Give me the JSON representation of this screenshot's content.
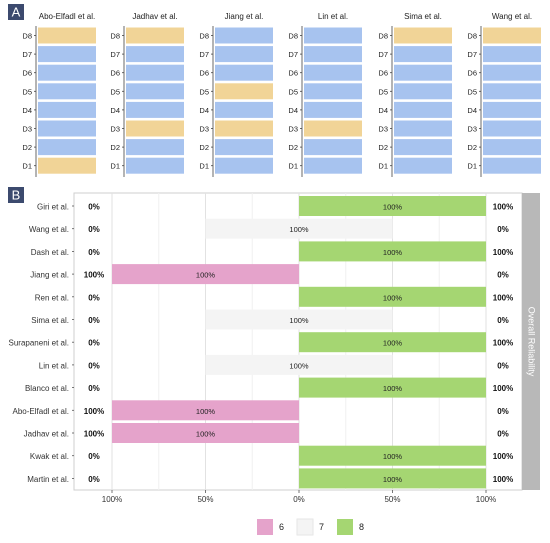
{
  "panel_a_label": "A",
  "panel_b_label": "B",
  "colors": {
    "blue": "#a7c3ef",
    "orange": "#f1d497",
    "pink": "#e5a3cb",
    "grey": "#f4f4f4",
    "green": "#a5d672",
    "panel_badge": "#3c4a6e",
    "strip": "#b8b8b8"
  },
  "chart_data": [
    {
      "type": "heatmap",
      "rows": [
        "D8",
        "D7",
        "D6",
        "D5",
        "D4",
        "D3",
        "D2",
        "D1"
      ],
      "studies": [
        {
          "name": "Abo-Elfadl et al.",
          "cells": [
            "orange",
            "blue",
            "blue",
            "blue",
            "blue",
            "blue",
            "blue",
            "orange"
          ]
        },
        {
          "name": "Jadhav et al.",
          "cells": [
            "orange",
            "blue",
            "blue",
            "blue",
            "blue",
            "orange",
            "blue",
            "blue"
          ]
        },
        {
          "name": "Jiang et al.",
          "cells": [
            "blue",
            "blue",
            "blue",
            "orange",
            "blue",
            "orange",
            "blue",
            "blue"
          ]
        },
        {
          "name": "Lin et al.",
          "cells": [
            "blue",
            "blue",
            "blue",
            "blue",
            "blue",
            "orange",
            "blue",
            "blue"
          ]
        },
        {
          "name": "Sima et al.",
          "cells": [
            "orange",
            "blue",
            "blue",
            "blue",
            "blue",
            "blue",
            "blue",
            "blue"
          ]
        },
        {
          "name": "Wang et al.",
          "cells": [
            "orange",
            "blue",
            "blue",
            "blue",
            "blue",
            "blue",
            "blue",
            "blue"
          ]
        }
      ]
    },
    {
      "type": "bar",
      "strip_label": "Overall Reliability",
      "x_tick_labels": [
        "100%",
        "50%",
        "0%",
        "50%",
        "100%"
      ],
      "legend": [
        {
          "key": "6",
          "color": "pink"
        },
        {
          "key": "7",
          "color": "grey"
        },
        {
          "key": "8",
          "color": "green"
        }
      ],
      "rows": [
        {
          "study": "Giri et al.",
          "score": "8",
          "value": 100,
          "label": "100%",
          "left": "0%",
          "right": "100%"
        },
        {
          "study": "Wang et al.",
          "score": "7",
          "value": 100,
          "label": "100%",
          "left": "0%",
          "right": "0%"
        },
        {
          "study": "Dash et al.",
          "score": "8",
          "value": 100,
          "label": "100%",
          "left": "0%",
          "right": "100%"
        },
        {
          "study": "Jiang et al.",
          "score": "6",
          "value": 100,
          "label": "100%",
          "left": "100%",
          "right": "0%"
        },
        {
          "study": "Ren et al.",
          "score": "8",
          "value": 100,
          "label": "100%",
          "left": "0%",
          "right": "100%"
        },
        {
          "study": "Sima et al.",
          "score": "7",
          "value": 100,
          "label": "100%",
          "left": "0%",
          "right": "0%"
        },
        {
          "study": "Surapaneni et al.",
          "score": "8",
          "value": 100,
          "label": "100%",
          "left": "0%",
          "right": "100%"
        },
        {
          "study": "Lin et al.",
          "score": "7",
          "value": 100,
          "label": "100%",
          "left": "0%",
          "right": "0%"
        },
        {
          "study": "Blanco et al.",
          "score": "8",
          "value": 100,
          "label": "100%",
          "left": "0%",
          "right": "100%"
        },
        {
          "study": "Abo-Elfadl et al.",
          "score": "6",
          "value": 100,
          "label": "100%",
          "left": "100%",
          "right": "0%"
        },
        {
          "study": "Jadhav et al.",
          "score": "6",
          "value": 100,
          "label": "100%",
          "left": "100%",
          "right": "0%"
        },
        {
          "study": "Kwak et al.",
          "score": "8",
          "value": 100,
          "label": "100%",
          "left": "0%",
          "right": "100%"
        },
        {
          "study": "Martin et al.",
          "score": "8",
          "value": 100,
          "label": "100%",
          "left": "0%",
          "right": "100%"
        }
      ]
    }
  ]
}
